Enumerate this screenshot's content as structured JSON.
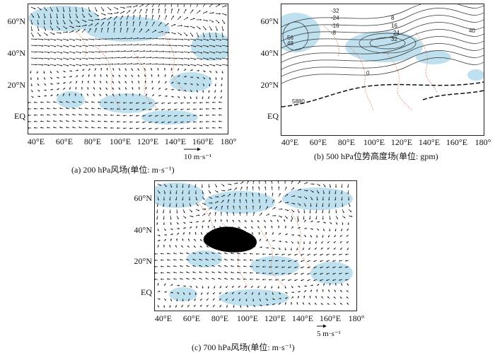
{
  "panels": [
    {
      "id": "a",
      "caption": "(a) 200 hPa风场(单位: m·s⁻¹)",
      "y_labels": [
        "60°N",
        "40°N",
        "20°N",
        "EQ"
      ],
      "x_labels": [
        "40°E",
        "60°E",
        "80°E",
        "100°E",
        "120°E",
        "140°E",
        "160°E",
        "180°"
      ],
      "reference_vector": {
        "value": "10",
        "unit": "m·s⁻¹"
      }
    },
    {
      "id": "b",
      "caption": "(b) 500 hPa位势高度场(单位: gpm)",
      "y_labels": [
        "60°N",
        "40°N",
        "20°N",
        "EQ"
      ],
      "x_labels": [
        "40°E",
        "60°E",
        "80°E",
        "100°E",
        "120°E",
        "140°E",
        "160°E",
        "180°"
      ],
      "contour_labels": [
        "-32",
        "-24",
        "-16",
        "-8",
        "8",
        "16",
        "24",
        "32",
        "40",
        "56",
        "48",
        "0",
        "5880"
      ]
    },
    {
      "id": "c",
      "caption": "(c) 700 hPa风场(单位: m·s⁻¹)",
      "y_labels": [
        "60°N",
        "40°N",
        "20°N",
        "EQ"
      ],
      "x_labels": [
        "40°E",
        "60°E",
        "80°E",
        "100°E",
        "120°E",
        "140°E",
        "160°E",
        "180°"
      ],
      "reference_vector": {
        "value": "5",
        "unit": "m·s⁻¹"
      }
    }
  ],
  "colors": {
    "shading": "#bfe0ee",
    "coast": "#e08a6a",
    "vector": "#111111",
    "plateau": "#000000"
  }
}
